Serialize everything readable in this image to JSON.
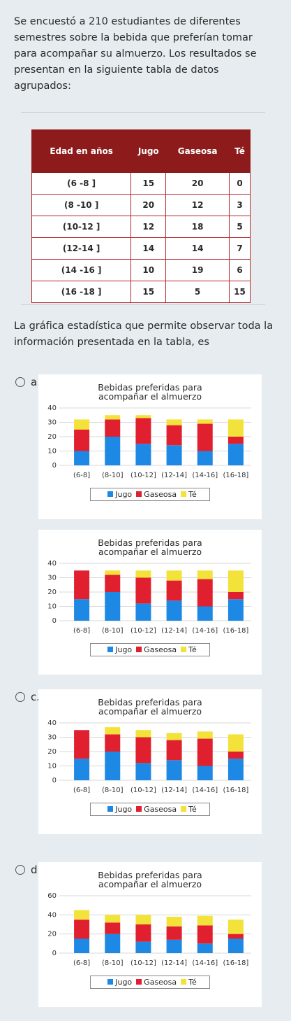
{
  "question": {
    "intro": "Se encuestó a 210 estudiantes de diferentes semestres sobre la bebida que preferían tomar para acompañar su almuerzo. Los resultados se presentan en la siguiente tabla de datos agrupados:",
    "prompt": "La gráfica estadística que permite observar toda la información presentada en la tabla, es"
  },
  "table": {
    "header": [
      "Edad en años",
      "Jugo",
      "Gaseosa",
      "Té"
    ],
    "rows": [
      [
        "(6 -8 ]",
        15,
        20,
        0
      ],
      [
        "(8 -10 ]",
        20,
        12,
        3
      ],
      [
        "(10-12 ]",
        12,
        18,
        5
      ],
      [
        "(12-14 ]",
        14,
        14,
        7
      ],
      [
        "(14 -16 ]",
        10,
        19,
        6
      ],
      [
        "(16 -18 ]",
        15,
        5,
        15
      ]
    ]
  },
  "options": [
    {
      "label": "a.",
      "chart_data": {
        "type": "stacked_bar",
        "title": "Bebidas preferidas para acompañar el almuerzo",
        "categories": [
          "(6-8]",
          "(8-10]",
          "(10-12]",
          "(12-14]",
          "(14-16]",
          "(16-18]"
        ],
        "series": [
          {
            "name": "Jugo",
            "color": "#1e88e5",
            "values": [
              10,
              20,
              15,
              14,
              10,
              15
            ]
          },
          {
            "name": "Gaseosa",
            "color": "#e0202e",
            "values": [
              15,
              12,
              18,
              14,
              19,
              5
            ]
          },
          {
            "name": "Té",
            "color": "#f2e23a",
            "values": [
              7,
              3,
              2,
              4,
              3,
              12
            ]
          }
        ],
        "ylim": [
          0,
          40
        ],
        "yticks": [
          0,
          10,
          20,
          30,
          40
        ],
        "grid": true
      }
    },
    {
      "chart_data": {
        "type": "stacked_bar",
        "title": "Bebidas preferidas para acompañar el almuerzo",
        "categories": [
          "(6-8]",
          "(8-10]",
          "(10-12]",
          "(12-14]",
          "(14-16]",
          "(16-18]"
        ],
        "series": [
          {
            "name": "Jugo",
            "color": "#1e88e5",
            "values": [
              15,
              20,
              12,
              14,
              10,
              15
            ]
          },
          {
            "name": "Gaseosa",
            "color": "#e0202e",
            "values": [
              20,
              12,
              18,
              14,
              19,
              5
            ]
          },
          {
            "name": "Té",
            "color": "#f2e23a",
            "values": [
              0,
              3,
              5,
              7,
              6,
              15
            ]
          }
        ],
        "ylim": [
          0,
          40
        ],
        "yticks": [
          0,
          10,
          20,
          30,
          40
        ],
        "grid": true
      }
    },
    {
      "label": "c.",
      "chart_data": {
        "type": "stacked_bar",
        "title": "Bebidas preferidas para acompañar el almuerzo",
        "categories": [
          "(6-8]",
          "(8-10]",
          "(10-12]",
          "(12-14]",
          "(14-16]",
          "(16-18]"
        ],
        "series": [
          {
            "name": "Jugo",
            "color": "#1e88e5",
            "values": [
              15,
              20,
              12,
              14,
              10,
              15
            ]
          },
          {
            "name": "Gaseosa",
            "color": "#e0202e",
            "values": [
              20,
              12,
              18,
              14,
              19,
              5
            ]
          },
          {
            "name": "Té",
            "color": "#f2e23a",
            "values": [
              0,
              5,
              5,
              5,
              5,
              12
            ]
          }
        ],
        "ylim": [
          0,
          40
        ],
        "yticks": [
          0,
          10,
          20,
          30,
          40
        ],
        "grid": true
      }
    },
    {
      "label": "d.",
      "chart_data": {
        "type": "stacked_bar",
        "title": "Bebidas preferidas para acompañar el almuerzo",
        "categories": [
          "(6-8]",
          "(8-10]",
          "(10-12]",
          "(12-14]",
          "(14-16]",
          "(16-18]"
        ],
        "series": [
          {
            "name": "Jugo",
            "color": "#1e88e5",
            "values": [
              15,
              20,
              12,
              14,
              10,
              15
            ]
          },
          {
            "name": "Gaseosa",
            "color": "#e0202e",
            "values": [
              20,
              12,
              18,
              14,
              19,
              5
            ]
          },
          {
            "name": "Té",
            "color": "#f2e23a",
            "values": [
              10,
              8,
              10,
              10,
              10,
              15
            ]
          }
        ],
        "ylim": [
          0,
          60
        ],
        "yticks": [
          0,
          20,
          40,
          60
        ],
        "grid": true
      }
    }
  ]
}
